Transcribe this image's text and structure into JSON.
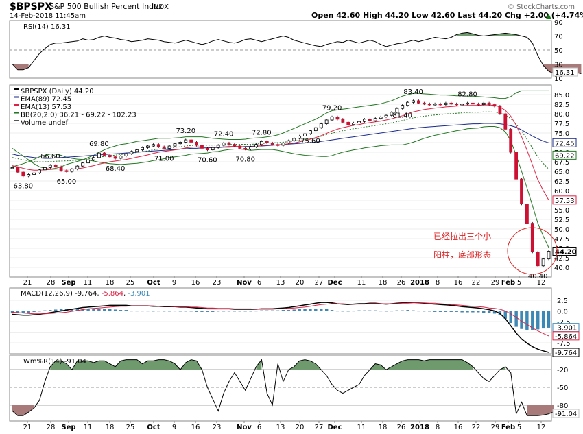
{
  "header": {
    "symbol": "$BPSPX",
    "name": "S&P 500 Bullish Percent Index",
    "exchange": "INDX",
    "date": "14-Feb-2018 11:45am",
    "watermark": "© StockCharts.com",
    "ohlc": "Open 42.60  High 44.20  Low 42.60  Last 44.20  Chg +2.00 (+4.74%)",
    "ohlc_arrow": "▲"
  },
  "x_axis": {
    "labels": [
      "21",
      "28",
      "Sep",
      "11",
      "18",
      "25",
      "Oct",
      "9",
      "16",
      "23",
      "Nov",
      "6",
      "13",
      "20",
      "27",
      "Dec",
      "11",
      "18",
      "26",
      "2018",
      "8",
      "16",
      "22",
      "29",
      "Feb",
      "5",
      "12"
    ],
    "bold": [
      "Sep",
      "Oct",
      "Nov",
      "Dec",
      "2018",
      "Feb"
    ]
  },
  "rsi": {
    "legend": "RSI(14) 16.31",
    "ticks": [
      "90",
      "70",
      "50",
      "30",
      "10"
    ],
    "last_tag": "16.31",
    "values": [
      30,
      22,
      22,
      25,
      35,
      45,
      52,
      58,
      60,
      60,
      61,
      62,
      63,
      66,
      64,
      65,
      68,
      70,
      68,
      67,
      65,
      64,
      62,
      63,
      64,
      66,
      65,
      64,
      62,
      61,
      60,
      62,
      64,
      62,
      60,
      58,
      60,
      63,
      65,
      63,
      61,
      60,
      62,
      65,
      66,
      64,
      62,
      64,
      66,
      68,
      70,
      68,
      64,
      62,
      60,
      58,
      56,
      55,
      58,
      60,
      62,
      61,
      64,
      62,
      60,
      62,
      64,
      62,
      58,
      55,
      57,
      59,
      60,
      62,
      64,
      62,
      64,
      66,
      68,
      67,
      66,
      68,
      72,
      74,
      75,
      73,
      71,
      70,
      71,
      72,
      73,
      74,
      73,
      72,
      70,
      68,
      60,
      42,
      28,
      20,
      16,
      15,
      14,
      16,
      18,
      16.31
    ]
  },
  "price": {
    "legend": [
      "$BPSPX (Daily) 44.20",
      "EMA(89) 72.45",
      "EMA(13) 57.53",
      "BB(20,2.0) 36.21 - 69.22 - 102.23",
      "Volume undef"
    ],
    "ticks": [
      "85.0",
      "82.5",
      "80.0",
      "77.5",
      "75.0",
      "72.5",
      "70.0",
      "67.5",
      "65.0",
      "62.5",
      "60.0",
      "57.5",
      "55.0",
      "52.5",
      "50.0",
      "47.5",
      "45.0",
      "42.5",
      "40.0"
    ],
    "tags": [
      "72.45",
      "69.22",
      "57.53",
      "44.20"
    ],
    "annotations": [
      "63.80",
      "65.00",
      "66.60",
      "69.80",
      "68.40",
      "71.00",
      "73.20",
      "70.60",
      "72.40",
      "70.80",
      "72.80",
      "75.60",
      "79.20",
      "83.40",
      "81.40",
      "82.80",
      "40.40"
    ],
    "note_line1": "已经拉出三个小",
    "note_line2": "阳柱，底部形态"
  },
  "macd": {
    "legend_label": "MACD(12,26,9)",
    "legend_v1": "-9.764",
    "legend_v2": "-5.864",
    "legend_v3": "-3.901",
    "ticks": [
      "2.5",
      "0.0",
      "-2.5",
      "-5.0",
      "-7.5"
    ],
    "tags": [
      "-3.901",
      "-5.864",
      "-9.764"
    ]
  },
  "willr": {
    "legend": "Wm%R(14) -91.04",
    "ticks": [
      "-20",
      "-50",
      "-80"
    ],
    "last_tag": "-91.04"
  },
  "colors": {
    "up_candle": "#ffffff",
    "down_candle": "#cc1133",
    "ema89": "#1a2a8a",
    "ema13": "#dd2244",
    "bb": "#227722",
    "bb_mid": "#227722",
    "rsi_fill_high": "#6e9a6e",
    "rsi_fill_low": "#a97a7a",
    "macd_hist": "#3a8ab8",
    "macd_line": "#000000",
    "signal_line": "#dd2244",
    "circle": "#dd2222",
    "note_color": "#dd2222"
  },
  "chart_data": [
    {
      "type": "line",
      "title": "RSI(14) 16.31",
      "ylim": [
        10,
        90
      ],
      "series": [
        {
          "name": "RSI(14)",
          "values": [
            30,
            22,
            22,
            25,
            35,
            45,
            52,
            58,
            60,
            60,
            61,
            62,
            63,
            66,
            64,
            65,
            68,
            70,
            68,
            67,
            65,
            64,
            62,
            63,
            64,
            66,
            65,
            64,
            62,
            61,
            60,
            62,
            64,
            62,
            60,
            58,
            60,
            63,
            65,
            63,
            61,
            60,
            62,
            65,
            66,
            64,
            62,
            64,
            66,
            68,
            70,
            68,
            64,
            62,
            60,
            58,
            56,
            55,
            58,
            60,
            62,
            61,
            64,
            62,
            60,
            62,
            64,
            62,
            58,
            55,
            57,
            59,
            60,
            62,
            64,
            62,
            64,
            66,
            68,
            67,
            66,
            68,
            72,
            74,
            75,
            73,
            71,
            70,
            71,
            72,
            73,
            74,
            73,
            72,
            70,
            68,
            60,
            42,
            28,
            20,
            16,
            15,
            14,
            16,
            18,
            16.31
          ]
        }
      ]
    },
    {
      "type": "line",
      "title": "$BPSPX (Daily) 44.20",
      "ylabel": "",
      "ylim": [
        39,
        86
      ],
      "series": [
        {
          "name": "$BPSPX (Daily) 44.20",
          "values": [
            66.0,
            64.8,
            63.8,
            64.2,
            64.6,
            65.4,
            66.0,
            66.6,
            66.2,
            65.2,
            65.0,
            65.6,
            66.4,
            67.2,
            68.0,
            68.6,
            69.8,
            69.2,
            68.8,
            68.4,
            69.0,
            69.6,
            70.2,
            70.6,
            71.2,
            71.6,
            72.0,
            71.4,
            71.0,
            71.6,
            72.2,
            72.6,
            73.2,
            72.6,
            71.8,
            71.0,
            70.6,
            71.2,
            71.8,
            72.4,
            72.0,
            71.6,
            71.0,
            70.8,
            71.4,
            72.0,
            72.8,
            72.4,
            72.0,
            71.8,
            72.4,
            73.0,
            73.6,
            74.2,
            74.8,
            75.6,
            76.4,
            77.4,
            78.4,
            79.2,
            78.6,
            77.8,
            77.2,
            77.6,
            78.0,
            78.6,
            78.2,
            78.8,
            79.2,
            79.6,
            80.4,
            81.4,
            82.2,
            83.0,
            83.4,
            82.8,
            82.6,
            82.4,
            82.6,
            82.4,
            82.8,
            82.6,
            82.4,
            82.6,
            82.8,
            82.6,
            82.4,
            82.8,
            82.4,
            82.0,
            80.0,
            76.0,
            70.0,
            63.0,
            56.5,
            51.5,
            44.0,
            40.4,
            42.2,
            44.2
          ]
        },
        {
          "name": "EMA(89) 72.45",
          "values": [
            69.5,
            69.2,
            69.0,
            68.8,
            68.6,
            68.5,
            68.4,
            68.4,
            68.5,
            68.6,
            68.7,
            68.8,
            68.9,
            69.0,
            69.1,
            69.2,
            69.3,
            69.4,
            69.5,
            69.6,
            69.7,
            69.8,
            69.9,
            70.0,
            70.1,
            70.2,
            70.3,
            70.4,
            70.5,
            70.6,
            70.7,
            70.8,
            70.9,
            71.0,
            71.0,
            71.1,
            71.1,
            71.2,
            71.2,
            71.3,
            71.3,
            71.4,
            71.4,
            71.5,
            71.5,
            71.6,
            71.6,
            71.7,
            71.8,
            71.9,
            72.0,
            72.1,
            72.2,
            72.3,
            72.4,
            72.5,
            72.6,
            72.8,
            73.0,
            73.2,
            73.4,
            73.6,
            73.8,
            74.0,
            74.2,
            74.4,
            74.6,
            74.8,
            75.0,
            75.2,
            75.4,
            75.6,
            75.8,
            76.0,
            76.2,
            76.4,
            76.5,
            76.6,
            76.7,
            76.8,
            76.9,
            77.0,
            77.1,
            77.2,
            77.3,
            77.4,
            77.4,
            77.5,
            77.5,
            77.5,
            77.4,
            77.2,
            76.9,
            76.5,
            75.8,
            75.0,
            74.2,
            73.5,
            72.9,
            72.45
          ]
        },
        {
          "name": "EMA(13) 57.53",
          "values": [
            66.5,
            66.2,
            65.8,
            65.5,
            65.3,
            65.3,
            65.4,
            65.5,
            65.6,
            65.6,
            65.6,
            65.6,
            65.7,
            65.9,
            66.2,
            66.5,
            66.9,
            67.2,
            67.5,
            67.7,
            67.9,
            68.1,
            68.4,
            68.7,
            69.0,
            69.3,
            69.7,
            70.0,
            70.2,
            70.4,
            70.6,
            70.8,
            71.1,
            71.3,
            71.4,
            71.4,
            71.3,
            71.3,
            71.3,
            71.4,
            71.5,
            71.5,
            71.5,
            71.4,
            71.4,
            71.5,
            71.7,
            71.8,
            71.9,
            71.9,
            72.0,
            72.2,
            72.4,
            72.7,
            73.0,
            73.4,
            73.8,
            74.3,
            74.9,
            75.5,
            76.0,
            76.4,
            76.7,
            77.0,
            77.2,
            77.5,
            77.7,
            77.9,
            78.1,
            78.4,
            78.7,
            79.1,
            79.5,
            80.0,
            80.5,
            80.8,
            81.1,
            81.3,
            81.5,
            81.6,
            81.8,
            81.9,
            82.0,
            82.1,
            82.2,
            82.2,
            82.2,
            82.3,
            82.3,
            82.2,
            81.8,
            80.9,
            79.4,
            77.0,
            74.0,
            70.5,
            66.7,
            62.8,
            60.0,
            57.53
          ]
        },
        {
          "name": "BB(20,2.0) 36.21 - 69.22 - 102.23",
          "values": [
            71.0,
            70.0,
            69.0,
            68.0,
            67.0,
            66.2,
            65.8,
            65.6,
            65.8,
            66.2,
            66.8,
            67.2,
            67.6,
            68.0,
            68.6,
            69.2,
            70.0,
            70.6,
            71.2,
            71.6,
            72.0,
            72.2,
            72.5,
            72.8,
            73.0,
            73.2,
            73.4,
            73.6,
            73.6,
            73.6,
            73.7,
            73.8,
            74.0,
            74.0,
            74.0,
            74.0,
            73.8,
            73.6,
            73.5,
            73.4,
            73.3,
            73.3,
            73.3,
            73.4,
            73.6,
            73.7,
            73.8,
            74.0,
            74.2,
            74.5,
            75.0,
            75.6,
            76.2,
            76.8,
            77.4,
            78.0,
            78.6,
            79.4,
            80.2,
            80.8,
            81.0,
            81.2,
            81.4,
            81.6,
            81.8,
            82.0,
            82.2,
            82.4,
            82.6,
            83.0,
            83.4,
            84.0,
            84.6,
            85.0,
            85.3,
            85.3,
            85.2,
            85.1,
            85.0,
            84.9,
            84.9,
            84.8,
            84.7,
            84.7,
            84.6,
            84.6,
            84.5,
            84.4,
            84.3,
            84.2,
            84.0,
            84.0,
            84.5,
            85.5,
            86.0,
            86.0,
            86.0,
            86.0,
            86.0,
            86.0
          ]
        }
      ]
    },
    {
      "type": "bar",
      "title": "MACD(12,26,9) -9.764, -5.864, -3.901",
      "ylim": [
        -10,
        3
      ],
      "series": [
        {
          "name": "MACD",
          "values": [
            -0.8,
            -0.9,
            -1.0,
            -1.0,
            -0.9,
            -0.8,
            -0.6,
            -0.4,
            -0.2,
            0.0,
            0.2,
            0.4,
            0.6,
            0.8,
            0.9,
            1.0,
            1.1,
            1.2,
            1.3,
            1.3,
            1.3,
            1.3,
            1.2,
            1.2,
            1.2,
            1.2,
            1.1,
            1.1,
            1.0,
            1.0,
            1.0,
            0.9,
            0.9,
            0.8,
            0.7,
            0.6,
            0.5,
            0.5,
            0.5,
            0.5,
            0.5,
            0.4,
            0.4,
            0.4,
            0.4,
            0.4,
            0.5,
            0.5,
            0.5,
            0.6,
            0.7,
            0.8,
            1.0,
            1.2,
            1.4,
            1.6,
            1.8,
            2.0,
            2.0,
            1.9,
            1.7,
            1.6,
            1.5,
            1.6,
            1.7,
            1.7,
            1.8,
            1.8,
            1.7,
            1.6,
            1.7,
            1.8,
            1.9,
            2.0,
            2.0,
            1.9,
            1.8,
            1.7,
            1.6,
            1.5,
            1.4,
            1.3,
            1.2,
            1.0,
            0.9,
            0.8,
            0.7,
            0.5,
            0.3,
            0.0,
            -0.6,
            -1.8,
            -3.5,
            -5.2,
            -6.6,
            -7.6,
            -8.4,
            -9.0,
            -9.4,
            -9.764
          ]
        },
        {
          "name": "Signal",
          "values": [
            -0.3,
            -0.4,
            -0.5,
            -0.6,
            -0.7,
            -0.7,
            -0.7,
            -0.6,
            -0.5,
            -0.4,
            -0.3,
            -0.1,
            0.1,
            0.3,
            0.5,
            0.6,
            0.7,
            0.8,
            0.9,
            1.0,
            1.1,
            1.1,
            1.2,
            1.2,
            1.2,
            1.2,
            1.2,
            1.1,
            1.1,
            1.1,
            1.0,
            1.0,
            1.0,
            0.9,
            0.9,
            0.8,
            0.7,
            0.7,
            0.6,
            0.6,
            0.6,
            0.5,
            0.5,
            0.5,
            0.5,
            0.4,
            0.4,
            0.4,
            0.4,
            0.5,
            0.5,
            0.6,
            0.7,
            0.8,
            0.9,
            1.1,
            1.3,
            1.5,
            1.6,
            1.7,
            1.7,
            1.7,
            1.6,
            1.6,
            1.6,
            1.6,
            1.7,
            1.7,
            1.7,
            1.7,
            1.7,
            1.7,
            1.8,
            1.8,
            1.9,
            1.9,
            1.9,
            1.8,
            1.8,
            1.7,
            1.6,
            1.5,
            1.4,
            1.3,
            1.2,
            1.1,
            1.0,
            0.9,
            0.7,
            0.6,
            0.4,
            0.0,
            -0.7,
            -1.5,
            -2.4,
            -3.2,
            -4.0,
            -4.7,
            -5.3,
            -5.864
          ]
        }
      ]
    },
    {
      "type": "line",
      "title": "Wm%R(14) -91.04",
      "ylim": [
        -100,
        0
      ],
      "series": [
        {
          "name": "Wm%R(14)",
          "values": [
            -90,
            -98,
            -98,
            -92,
            -85,
            -72,
            -40,
            -15,
            -5,
            -5,
            -10,
            -20,
            -5,
            -5,
            -5,
            -8,
            -5,
            -5,
            -10,
            -15,
            -5,
            -3,
            -3,
            -3,
            -10,
            -5,
            -5,
            -3,
            -3,
            -5,
            -10,
            -20,
            -8,
            -3,
            -5,
            -20,
            -50,
            -70,
            -90,
            -60,
            -40,
            -25,
            -40,
            -55,
            -35,
            -15,
            -3,
            -60,
            -80,
            -10,
            -40,
            -20,
            -15,
            -5,
            -3,
            -5,
            -10,
            -20,
            -30,
            -45,
            -55,
            -60,
            -55,
            -50,
            -45,
            -30,
            -20,
            -10,
            -12,
            -20,
            -15,
            -10,
            -5,
            -3,
            -3,
            -3,
            -5,
            -3,
            -3,
            -3,
            -3,
            -3,
            -3,
            -3,
            -8,
            -15,
            -25,
            -35,
            -40,
            -30,
            -20,
            -15,
            -25,
            -95,
            -75,
            -98,
            -98,
            -98,
            -97,
            -95,
            -91.04
          ]
        }
      ]
    }
  ]
}
